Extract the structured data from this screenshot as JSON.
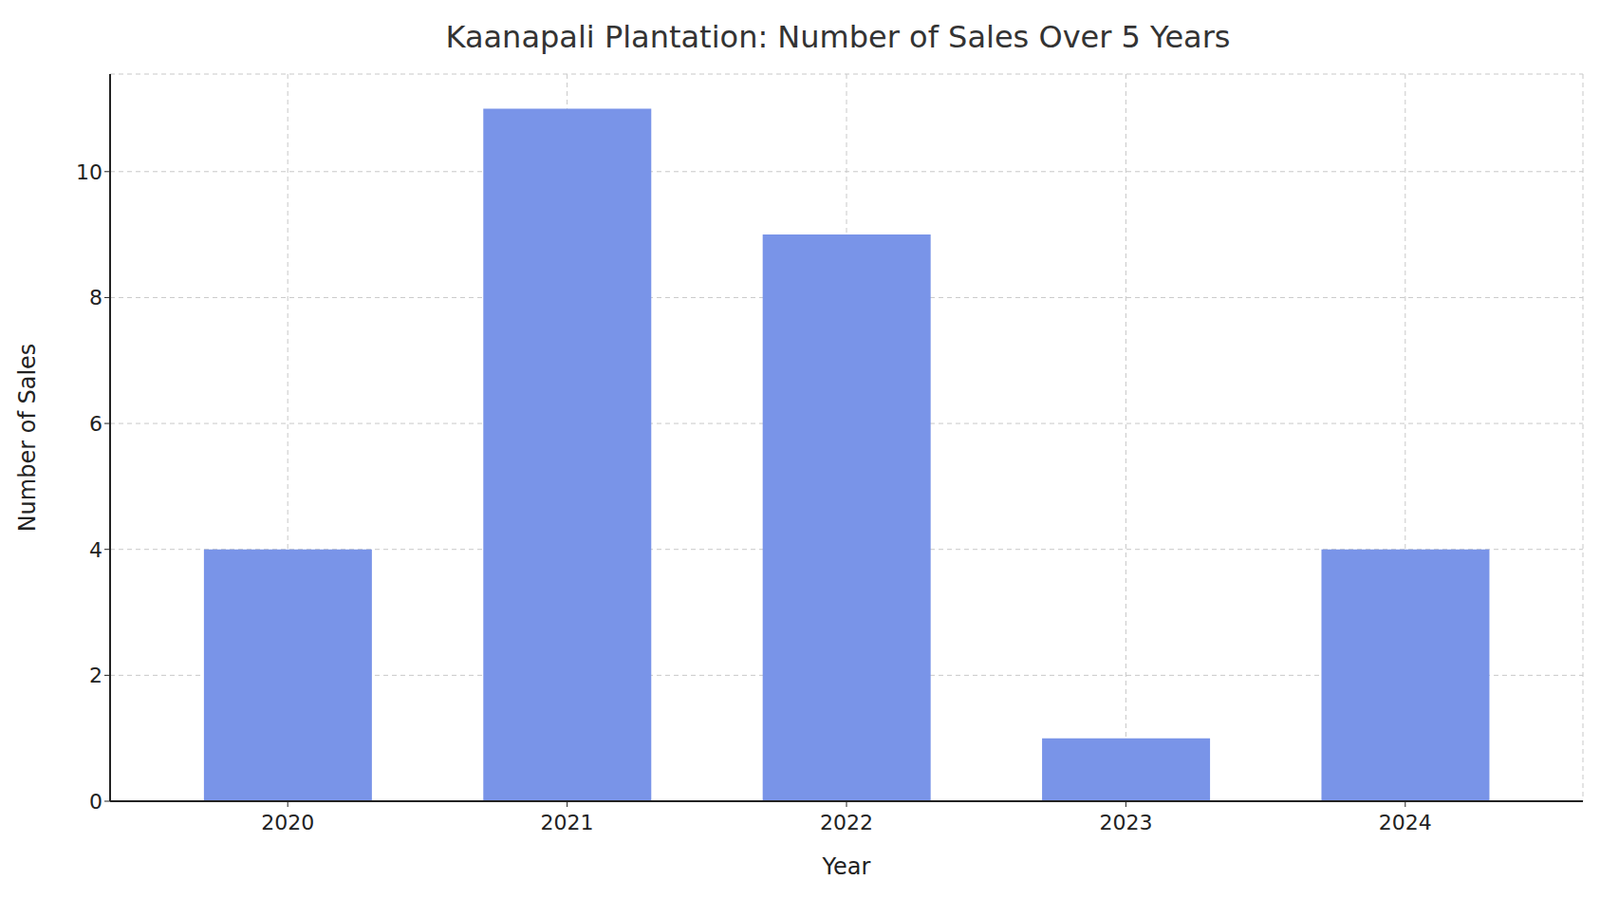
{
  "chart_data": {
    "type": "bar",
    "title": "Kaanapali Plantation: Number of Sales Over 5 Years",
    "x_label": "Year",
    "y_label": "Number of Sales",
    "categories": [
      "2020",
      "2021",
      "2022",
      "2023",
      "2024"
    ],
    "values": [
      4,
      11,
      9,
      1,
      4
    ],
    "color": "#7994e8",
    "ylim": [
      0,
      11.55
    ],
    "yticks": [
      0,
      2,
      4,
      6,
      8,
      10
    ],
    "grid": true
  }
}
